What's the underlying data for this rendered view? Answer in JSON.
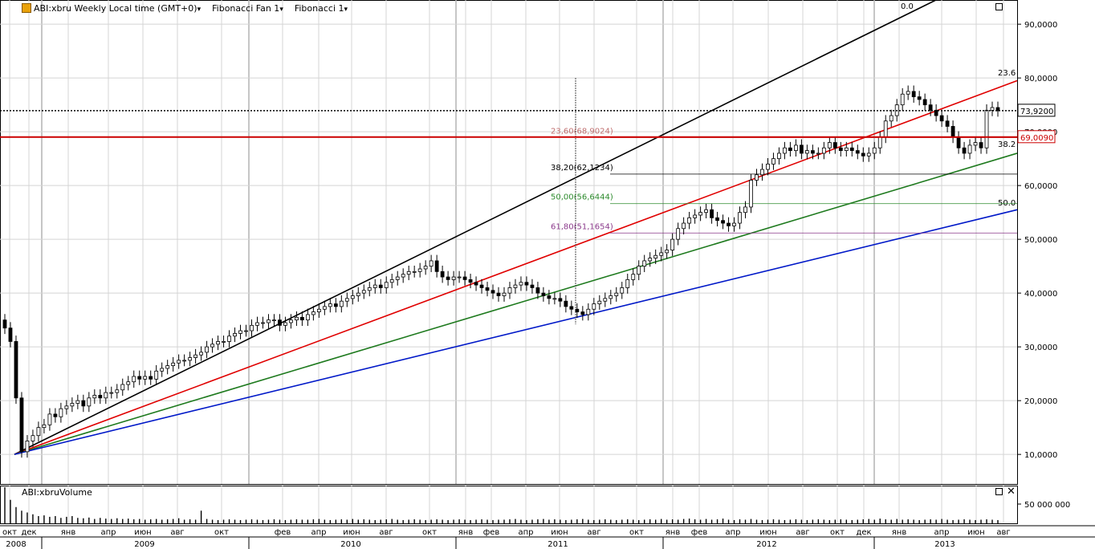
{
  "header": {
    "symbol_label": "ABI:xbru Weekly Local time (GMT+0)",
    "indicator_1": "Fibonacci Fan 1",
    "indicator_2": "Fibonacci 1"
  },
  "volume_panel": {
    "title": "ABI:xbruVolume",
    "axis_label": "50 000 000"
  },
  "chart_data": {
    "type": "candlestick",
    "title": "",
    "y_axis": {
      "ticks": [
        "10,0000",
        "20,0000",
        "30,0000",
        "40,0000",
        "50,0000",
        "60,0000",
        "70,0000",
        "80,0000",
        "90,0000"
      ],
      "tick_values": [
        10,
        20,
        30,
        40,
        50,
        60,
        70,
        80,
        90
      ],
      "range": [
        4.5,
        94.5
      ],
      "grid": true
    },
    "price_labels": [
      {
        "text": "73,9200",
        "value": 73.92,
        "color": "#000000"
      },
      {
        "text": "69,0090",
        "value": 69.009,
        "color": "#cc0000"
      }
    ],
    "x_axis": {
      "month_labels": [
        "окт",
        "дек",
        "янв",
        "апр",
        "июн",
        "авг",
        "окт",
        "фев",
        "апр",
        "июн",
        "авг",
        "окт",
        "янв",
        "фев",
        "апр",
        "июн",
        "авг",
        "окт",
        "янв",
        "фев",
        "апр",
        "июн",
        "авг",
        "окт",
        "дек",
        "янв",
        "апр",
        "июн",
        "авг"
      ],
      "year_labels": [
        "2008",
        "2009",
        "2010",
        "2011",
        "2012",
        "2013"
      ]
    },
    "fan_labels": [
      "0.0",
      "23.6",
      "38.2",
      "50.0"
    ],
    "fib_levels": [
      {
        "text": "23,60(68,9024)",
        "value": 68.9024,
        "color": "#c07070"
      },
      {
        "text": "38,20(62,1234)",
        "value": 62.1234,
        "color": "#000000"
      },
      {
        "text": "50,00(56,6444)",
        "value": 56.6444,
        "color": "#2e8b2e"
      },
      {
        "text": "61,80(51,1654)",
        "value": 51.1654,
        "color": "#8b3a8b"
      }
    ],
    "candles_close": [
      33.5,
      31,
      20.5,
      10.5,
      12.5,
      13.5,
      15,
      15.5,
      17.5,
      17,
      18.5,
      19,
      19.5,
      20,
      19,
      20.5,
      21,
      20.5,
      21.5,
      21.5,
      22,
      23,
      23.5,
      24.5,
      24,
      24.5,
      24,
      25.5,
      26,
      26.5,
      27,
      27.5,
      27.5,
      28,
      28.5,
      29,
      30,
      30.5,
      31,
      31,
      32,
      32.5,
      33,
      33,
      34,
      34.5,
      34.5,
      35,
      35,
      34,
      34.5,
      35,
      35.5,
      35,
      36,
      36.5,
      37,
      37.5,
      38,
      37.5,
      38.5,
      39,
      39.5,
      40,
      40.5,
      41,
      41.5,
      41,
      42,
      42.5,
      43,
      43.5,
      44,
      44,
      44.5,
      45,
      46,
      44,
      43,
      42.5,
      43,
      43,
      42.5,
      42,
      41.5,
      41,
      40.5,
      40,
      39.5,
      40,
      41,
      41.5,
      42,
      41.5,
      41,
      40,
      39.5,
      39,
      39,
      38.5,
      37.5,
      37,
      36.5,
      36,
      37,
      38,
      38.5,
      39,
      39.5,
      40,
      41,
      42.5,
      43.5,
      45,
      46,
      46.5,
      47,
      47.5,
      48,
      50,
      52,
      53,
      54,
      54.5,
      55,
      55.5,
      54,
      53.5,
      53,
      52.5,
      53,
      55,
      56,
      61,
      62,
      63,
      64,
      65,
      66,
      67,
      66.5,
      67.5,
      66,
      66.5,
      66,
      66,
      67,
      68,
      67,
      66.5,
      67,
      66.5,
      66,
      65.5,
      66,
      67,
      69,
      72,
      73,
      75,
      77,
      77.5,
      76.5,
      76,
      75,
      74,
      73,
      72,
      71,
      69,
      67,
      66,
      67.5,
      68,
      67,
      74,
      74.5,
      73.9
    ],
    "volume_relative": [
      1.0,
      0.65,
      0.45,
      0.35,
      0.3,
      0.25,
      0.2,
      0.22,
      0.18,
      0.2,
      0.15,
      0.18,
      0.2,
      0.15,
      0.14,
      0.16,
      0.12,
      0.15,
      0.13,
      0.12,
      0.14,
      0.12,
      0.13,
      0.11,
      0.12,
      0.1,
      0.11,
      0.12,
      0.1,
      0.11,
      0.12,
      0.14,
      0.1,
      0.11,
      0.1,
      0.35,
      0.12,
      0.1,
      0.09,
      0.1,
      0.11,
      0.1,
      0.09,
      0.1,
      0.11,
      0.1,
      0.09,
      0.1,
      0.11,
      0.1,
      0.09,
      0.1,
      0.11,
      0.1,
      0.1,
      0.11,
      0.12,
      0.1,
      0.09,
      0.1,
      0.11,
      0.1,
      0.12,
      0.1,
      0.11,
      0.1,
      0.09,
      0.1,
      0.11,
      0.12,
      0.1,
      0.09,
      0.1,
      0.11,
      0.1,
      0.09,
      0.1,
      0.11,
      0.1,
      0.09,
      0.1,
      0.11,
      0.1,
      0.09,
      0.1,
      0.11,
      0.1,
      0.09,
      0.1,
      0.1,
      0.11,
      0.12,
      0.1,
      0.09,
      0.1,
      0.11,
      0.12,
      0.1,
      0.11,
      0.1,
      0.09,
      0.1,
      0.11,
      0.12,
      0.1,
      0.09,
      0.1,
      0.11,
      0.1,
      0.09,
      0.1,
      0.11,
      0.1,
      0.09,
      0.1,
      0.11,
      0.1,
      0.12,
      0.1,
      0.11,
      0.1,
      0.12,
      0.13,
      0.11,
      0.1,
      0.12,
      0.1,
      0.11,
      0.13,
      0.1,
      0.09,
      0.11,
      0.1,
      0.12,
      0.1,
      0.09,
      0.1,
      0.11,
      0.1,
      0.09,
      0.1,
      0.11,
      0.1,
      0.09,
      0.1,
      0.11,
      0.1,
      0.09,
      0.1,
      0.11,
      0.1,
      0.09,
      0.1,
      0.11,
      0.12,
      0.1,
      0.13,
      0.11,
      0.1,
      0.12,
      0.1,
      0.11,
      0.1,
      0.09,
      0.1,
      0.11,
      0.1,
      0.12,
      0.1,
      0.09,
      0.1,
      0.11,
      0.1,
      0.09,
      0.1,
      0.11,
      0.1,
      0.09
    ],
    "colors": {
      "fan_0": "#000000",
      "fan_236": "#e00000",
      "fan_382": "#1e7a1e",
      "fan_50": "#0018c8",
      "hline_price": "#cc0000",
      "grid": "#d4d4d4"
    }
  }
}
